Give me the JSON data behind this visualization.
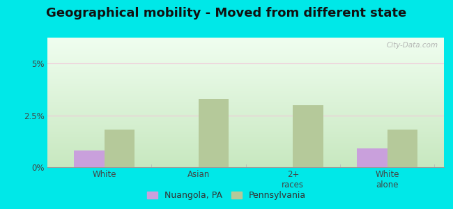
{
  "title": "Geographical mobility - Moved from different state",
  "categories": [
    "White",
    "Asian",
    "2+\nraces",
    "White\nalone"
  ],
  "nuangola_values": [
    0.8,
    0.0,
    0.0,
    0.9
  ],
  "pennsylvania_values": [
    1.8,
    3.3,
    3.0,
    1.8
  ],
  "nuangola_color": "#c9a0dc",
  "pennsylvania_color": "#b5c99a",
  "ylim": [
    0,
    6.25
  ],
  "ytick_values": [
    0,
    2.5,
    5.0
  ],
  "ytick_labels": [
    "0%",
    "2.5%",
    "5%"
  ],
  "outer_bg": "#00e8e8",
  "bar_width": 0.32,
  "legend_labels": [
    "Nuangola, PA",
    "Pennsylvania"
  ],
  "watermark": "City-Data.com",
  "grid_line_color": "#f0c8d8",
  "title_fontsize": 13
}
